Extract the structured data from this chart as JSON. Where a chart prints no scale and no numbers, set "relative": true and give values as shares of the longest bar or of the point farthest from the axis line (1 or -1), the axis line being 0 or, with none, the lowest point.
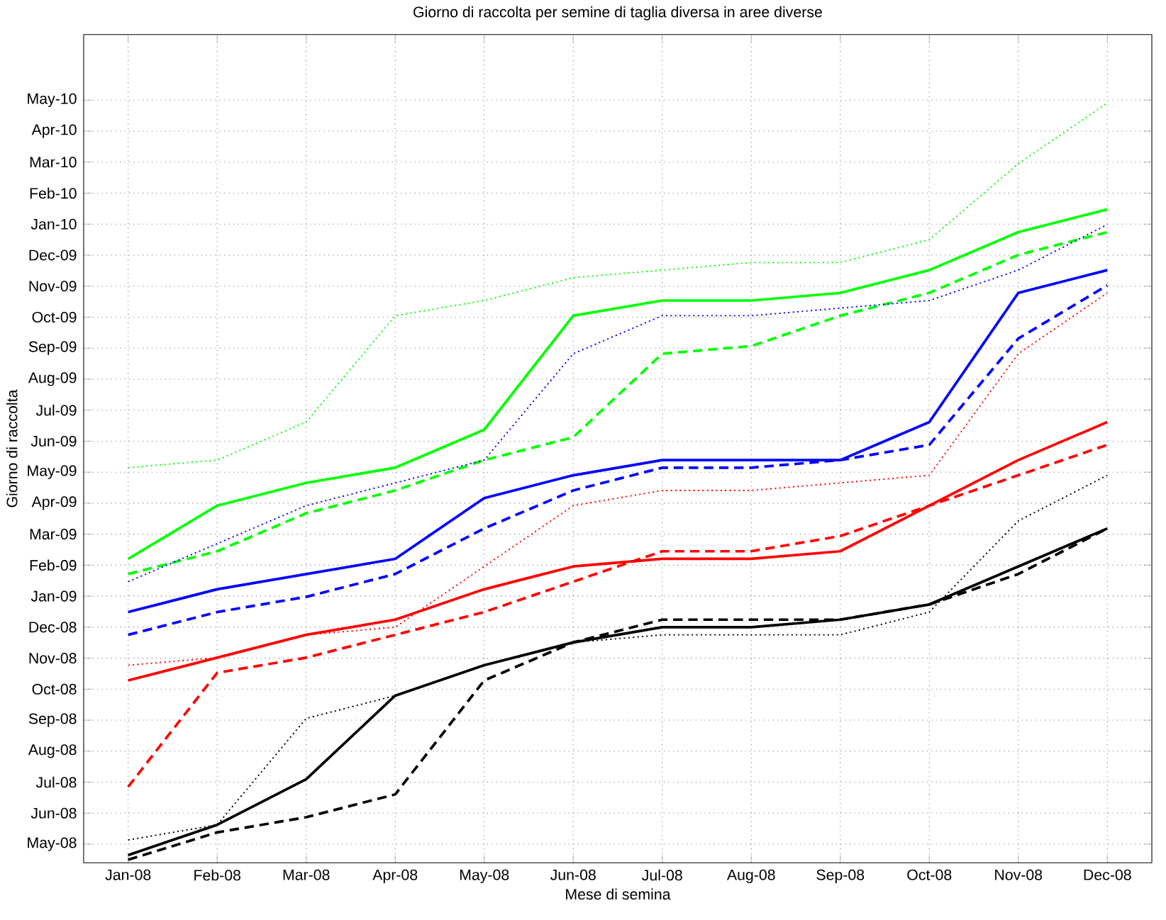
{
  "chart_data": {
    "type": "line",
    "title": "Giorno di raccolta per semine di taglia diversa in aree diverse",
    "xlabel": "Mese di semina",
    "ylabel": "Giorno di raccolta",
    "categories": [
      "Jan-08",
      "Feb-08",
      "Mar-08",
      "Apr-08",
      "May-08",
      "Jun-08",
      "Jul-08",
      "Aug-08",
      "Sep-08",
      "Oct-08",
      "Nov-08",
      "Dec-08"
    ],
    "relative": true,
    "annotations": [
      "May-08",
      "Jun-08",
      "Jul-08",
      "Aug-08",
      "Sep-08",
      "Oct-08",
      "Nov-08",
      "Dec-08",
      "Jan-09",
      "Feb-09",
      "Mar-09",
      "Apr-09",
      "May-09",
      "Jun-09",
      "Jul-09",
      "Aug-09",
      "Sep-09",
      "Oct-09",
      "Nov-09",
      "Dec-09",
      "Jan-10",
      "Feb-10",
      "Mar-10",
      "Apr-10",
      "May-10"
    ],
    "grid": true,
    "marker": "none",
    "series": [
      {
        "color": "#00ff00",
        "line_style": "solid",
        "values": [
          0.4,
          0.47,
          0.5,
          0.52,
          0.57,
          0.72,
          0.74,
          0.74,
          0.75,
          0.78,
          0.83,
          0.86
        ]
      },
      {
        "color": "#00ff00",
        "line_style": "dashed",
        "values": [
          0.38,
          0.41,
          0.46,
          0.49,
          0.53,
          0.56,
          0.67,
          0.68,
          0.72,
          0.75,
          0.8,
          0.83
        ]
      },
      {
        "color": "#00ff00",
        "line_style": "dotted",
        "values": [
          0.52,
          0.53,
          0.58,
          0.72,
          0.74,
          0.77,
          0.78,
          0.79,
          0.79,
          0.82,
          0.92,
          1
        ]
      },
      {
        "color": "#0000ff",
        "line_style": "solid",
        "values": [
          0.33,
          0.36,
          0.38,
          0.4,
          0.48,
          0.51,
          0.53,
          0.53,
          0.53,
          0.58,
          0.75,
          0.78
        ]
      },
      {
        "color": "#0000ff",
        "line_style": "dashed",
        "values": [
          0.3,
          0.33,
          0.35,
          0.38,
          0.44,
          0.49,
          0.52,
          0.52,
          0.53,
          0.55,
          0.69,
          0.76
        ]
      },
      {
        "color": "#0000ff",
        "line_style": "dotted",
        "values": [
          0.37,
          0.42,
          0.47,
          0.5,
          0.53,
          0.67,
          0.72,
          0.72,
          0.73,
          0.74,
          0.78,
          0.84
        ]
      },
      {
        "color": "#ff0000",
        "line_style": "solid",
        "values": [
          0.24,
          0.27,
          0.3,
          0.32,
          0.36,
          0.39,
          0.4,
          0.4,
          0.41,
          0.47,
          0.53,
          0.58
        ]
      },
      {
        "color": "#ff0000",
        "line_style": "dashed",
        "values": [
          0.1,
          0.25,
          0.27,
          0.3,
          0.33,
          0.37,
          0.41,
          0.41,
          0.43,
          0.47,
          0.51,
          0.55
        ]
      },
      {
        "color": "#ff0000",
        "line_style": "dotted",
        "values": [
          0.26,
          0.27,
          0.3,
          0.31,
          0.39,
          0.47,
          0.49,
          0.49,
          0.5,
          0.51,
          0.67,
          0.75
        ]
      },
      {
        "color": "#000000",
        "line_style": "solid",
        "values": [
          0.01,
          0.05,
          0.11,
          0.22,
          0.26,
          0.29,
          0.31,
          0.31,
          0.32,
          0.34,
          0.39,
          0.44
        ]
      },
      {
        "color": "#000000",
        "line_style": "dashed",
        "values": [
          0.004,
          0.04,
          0.06,
          0.09,
          0.24,
          0.29,
          0.32,
          0.32,
          0.32,
          0.34,
          0.38,
          0.44
        ]
      },
      {
        "color": "#000000",
        "line_style": "dotted",
        "values": [
          0.03,
          0.05,
          0.19,
          0.22,
          0.26,
          0.29,
          0.3,
          0.3,
          0.3,
          0.33,
          0.45,
          0.51
        ]
      }
    ]
  }
}
